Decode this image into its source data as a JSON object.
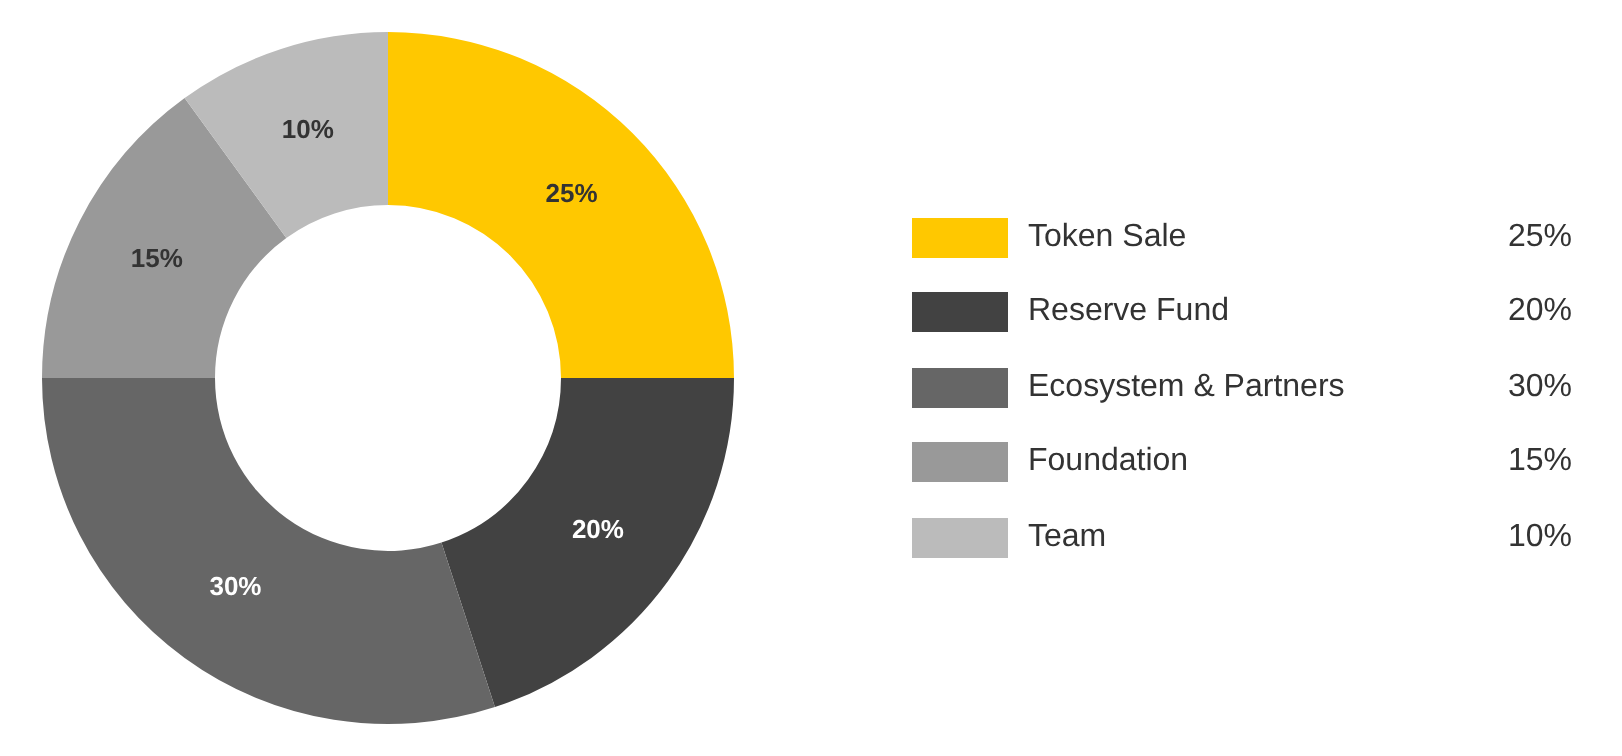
{
  "chart_data": {
    "type": "donut",
    "categories": [
      "Token Sale",
      "Reserve Fund",
      "Ecosystem & Partners",
      "Foundation",
      "Team"
    ],
    "values": [
      25,
      20,
      30,
      15,
      10
    ],
    "value_labels": [
      "25%",
      "20%",
      "30%",
      "15%",
      "10%"
    ],
    "colors": [
      "#ffc800",
      "#424242",
      "#666666",
      "#999999",
      "#bbbbbb"
    ],
    "legend": "right"
  }
}
